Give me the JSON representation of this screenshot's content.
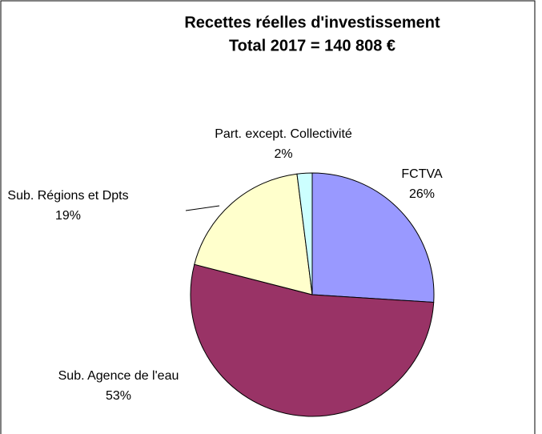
{
  "chart_data": {
    "type": "pie",
    "title": "Recettes réelles d'investissement",
    "subtitle": "Total 2017 = 140 808 €",
    "categories": [
      "FCTVA",
      "Sub. Agence de l'eau",
      "Sub. Régions et Dpts",
      "Part. except. Collectivité"
    ],
    "values": [
      26,
      53,
      19,
      2
    ],
    "value_labels": [
      "26%",
      "53%",
      "19%",
      "2%"
    ],
    "colors": [
      "#9999ff",
      "#993366",
      "#ffffcc",
      "#ccffff"
    ]
  }
}
